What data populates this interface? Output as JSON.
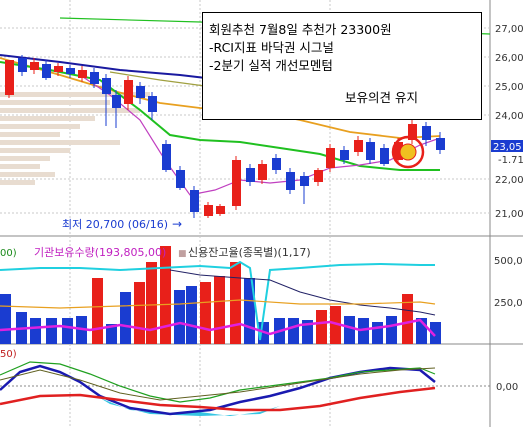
{
  "annotation": {
    "line1": "회원추천 7월8일 추천가 23300원",
    "line2": "-RCI지표 바닥권 시그널",
    "line3": "-2분기 실적 개선모멘텀",
    "line4": "보유의견 유지"
  },
  "price_chart": {
    "low_label": "최저 20,700 (06/16)",
    "low_arrow": "→",
    "y_ticks": [
      "27,00",
      "26,00",
      "25,00",
      "24,00",
      "22,00",
      "21,00"
    ],
    "current_price": "23,05",
    "change": "-1.71",
    "colors": {
      "up": "#e8201a",
      "down": "#1a3cd0",
      "ma_long": "#1a1aa0",
      "ma_mid": "#e8a020",
      "ma_short": "#20c020",
      "ma_fast": "#c040c0",
      "highlight": "#e8201a"
    }
  },
  "volume_panel": {
    "header_left": "00)",
    "legend1": "기관보유수량(193,805,00)",
    "legend2_marker": "■",
    "legend2": "신용잔고율(종목별)(1,17)",
    "y_ticks": [
      "500,0",
      "250,0"
    ]
  },
  "indicator_panel": {
    "header_left": "50)",
    "y_tick": "0,00"
  }
}
